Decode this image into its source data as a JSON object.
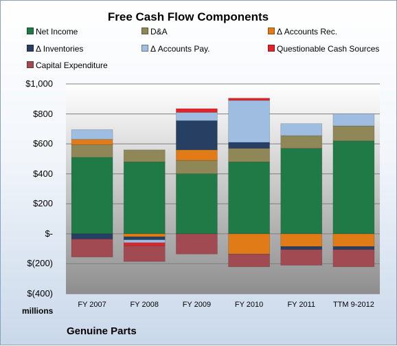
{
  "chart_data": {
    "type": "bar",
    "stacked": true,
    "title": "Free Cash Flow Components",
    "ylabel": "millions",
    "ylim": [
      -400,
      1000
    ],
    "yticks": [
      {
        "value": 1000,
        "label": "$1,000"
      },
      {
        "value": 800,
        "label": "$800"
      },
      {
        "value": 600,
        "label": "$600"
      },
      {
        "value": 400,
        "label": "$400"
      },
      {
        "value": 200,
        "label": "$200"
      },
      {
        "value": 0,
        "label": "$-"
      },
      {
        "value": -200,
        "label": "$(200)"
      },
      {
        "value": -400,
        "label": "$(400)"
      }
    ],
    "categories": [
      "FY 2007",
      "FY 2008",
      "FY 2009",
      "FY 2010",
      "FY 2011",
      "TTM 9-2012"
    ],
    "grid": true,
    "legend_position": "top",
    "series": [
      {
        "name": "Net Income",
        "color": "#1f7a45",
        "values": [
          510,
          480,
          400,
          480,
          570,
          620
        ]
      },
      {
        "name": "D&A",
        "color": "#8f8757",
        "values": [
          85,
          80,
          90,
          90,
          85,
          100
        ]
      },
      {
        "name": "Δ Accounts Rec.",
        "color": "#e07b17",
        "values": [
          35,
          -20,
          70,
          -135,
          -85,
          -85
        ]
      },
      {
        "name": "Δ Inventories",
        "color": "#263f63",
        "values": [
          -35,
          -20,
          195,
          40,
          -20,
          -20
        ]
      },
      {
        "name": "Δ Accounts Pay.",
        "color": "#9fbde0",
        "values": [
          65,
          -20,
          55,
          280,
          80,
          80
        ]
      },
      {
        "name": "Questionable Cash Sources",
        "color": "#e2232a",
        "values": [
          0,
          -20,
          25,
          15,
          0,
          0
        ]
      },
      {
        "name": "Capital Expenditure",
        "color": "#a24a52",
        "values": [
          -120,
          -105,
          -135,
          -85,
          -105,
          -115
        ]
      }
    ]
  },
  "footer": {
    "units": "millions",
    "company": "Genuine Parts"
  }
}
